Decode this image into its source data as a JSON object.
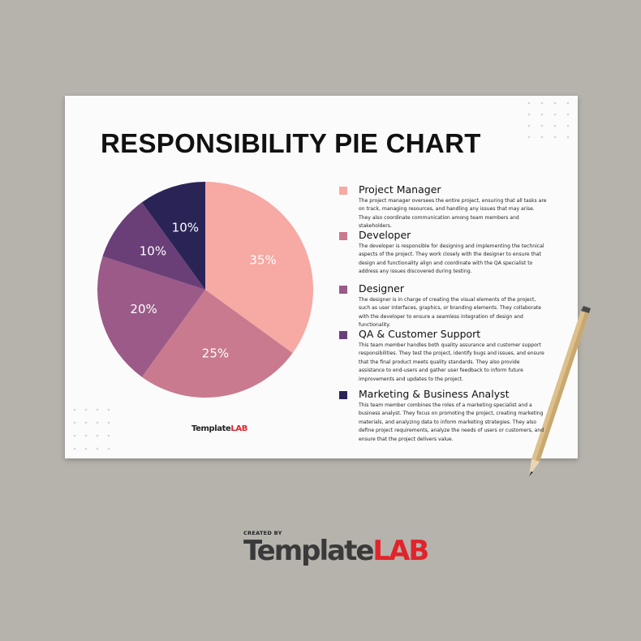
{
  "chart_data": {
    "type": "pie",
    "title": "RESPONSIBILITY PIE CHART",
    "categories": [
      "Project Manager",
      "Developer",
      "Designer",
      "QA & Customer Support",
      "Marketing & Business Analyst"
    ],
    "values": [
      35,
      25,
      20,
      10,
      10
    ],
    "value_labels": [
      "35%",
      "25%",
      "20%",
      "10%",
      "10%"
    ],
    "colors": [
      "#f7a9a4",
      "#c97a8e",
      "#9b5a88",
      "#6a3f78",
      "#2a2456"
    ],
    "descriptions": [
      "The project manager oversees the entire project, ensuring that all tasks are on track, managing resources, and handling any issues that may arise. They also coordinate communication among team members and stakeholders.",
      "The developer is responsible for designing and implementing the technical aspects of the project. They work closely with the designer to ensure that design and functionality align and coordinate with the QA specialist to address any issues discovered during testing.",
      "The designer is in charge of creating the visual elements of the project, such as user interfaces, graphics, or branding elements. They collaborate with the developer to ensure a seamless integration of design and functionality.",
      "This team member handles both quality assurance and customer support responsibilities. They test the project, identify bugs and issues, and ensure that the final product meets quality standards. They also provide assistance to end-users and gather user feedback to inform future improvements and updates to the project.",
      "This team member combines the roles of a marketing specialist and a business analyst. They focus on promoting the project, creating marketing materials, and analyzing data to inform marketing strategies. They also define project requirements, analyze the needs of users or customers, and ensure that the project delivers value."
    ]
  },
  "brand": {
    "template": "Template",
    "lab": "LAB",
    "created_by": "CREATED BY"
  }
}
